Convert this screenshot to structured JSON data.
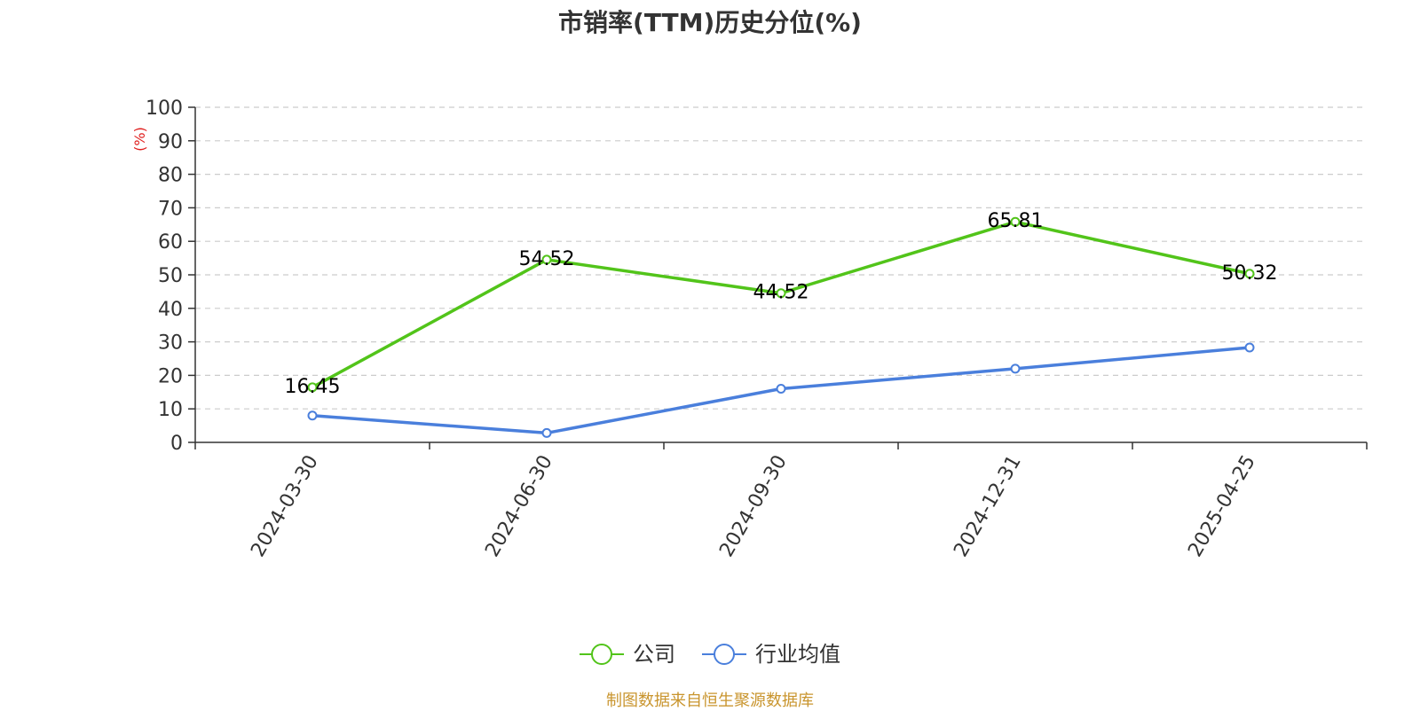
{
  "chart_data": {
    "type": "line",
    "title": "市销率(TTM)历史分位(%)",
    "ylabel": "(%)",
    "xlabel": "",
    "ylim": [
      0,
      100
    ],
    "y_ticks": [
      0,
      10,
      20,
      30,
      40,
      50,
      60,
      70,
      80,
      90,
      100
    ],
    "categories": [
      "2024-03-30",
      "2024-06-30",
      "2024-09-30",
      "2024-12-31",
      "2025-04-25"
    ],
    "series": [
      {
        "name": "公司",
        "color": "#52c41a",
        "values": [
          16.45,
          54.52,
          44.52,
          65.81,
          50.32
        ],
        "show_labels": true
      },
      {
        "name": "行业均值",
        "color": "#4a7fdc",
        "values": [
          8,
          2.8,
          16,
          22,
          28.3
        ],
        "show_labels": false
      }
    ],
    "grid": "horizontal-dashed",
    "legend": "bottom-center"
  },
  "source": "制图数据来自恒生聚源数据库"
}
